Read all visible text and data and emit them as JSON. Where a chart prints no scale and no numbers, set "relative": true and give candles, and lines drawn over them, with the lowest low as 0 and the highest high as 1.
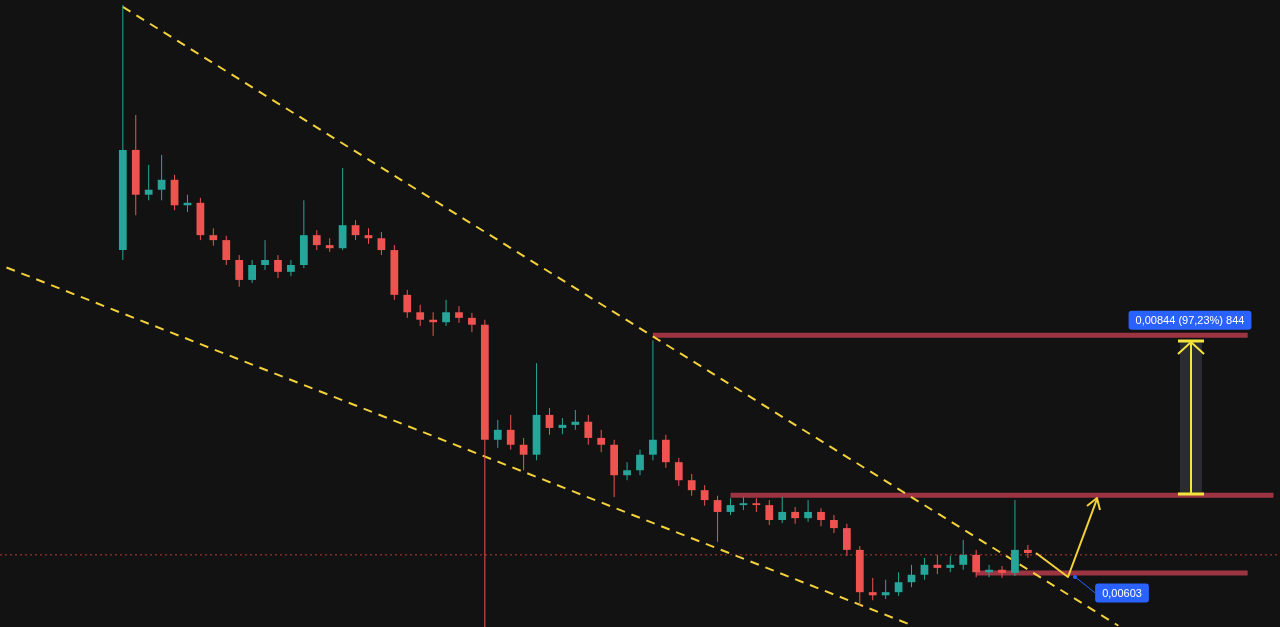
{
  "chart_data": {
    "type": "candlestick",
    "relative": true,
    "categories": [
      null,
      null,
      null,
      null,
      null,
      null,
      null,
      null,
      null,
      null,
      null,
      null,
      null,
      null,
      null,
      null,
      null,
      null,
      null,
      null,
      null,
      null,
      null,
      null,
      null,
      null,
      null,
      null,
      null,
      null,
      null,
      null,
      null,
      null,
      null,
      null,
      null,
      null,
      null,
      null,
      null,
      null,
      null,
      null,
      null,
      null,
      null,
      null,
      null,
      null,
      null,
      null,
      null,
      null,
      null,
      null,
      null,
      null,
      null,
      null,
      null,
      null,
      null,
      null,
      null,
      null,
      null,
      null,
      null,
      null,
      null,
      null,
      null,
      null,
      null,
      null,
      null,
      null,
      null,
      null,
      null,
      null,
      null,
      null,
      null,
      null,
      null,
      null,
      null,
      null,
      null,
      null,
      null,
      null,
      null,
      null,
      null,
      null,
      null
    ],
    "ohlc": [
      null,
      null,
      null,
      null,
      null,
      null,
      null,
      null,
      null,
      [
        0.606,
        1.0,
        0.59,
        0.767
      ],
      [
        0.767,
        0.823,
        0.662,
        0.695
      ],
      [
        0.695,
        0.743,
        0.686,
        0.703
      ],
      [
        0.703,
        0.759,
        0.686,
        0.719
      ],
      [
        0.719,
        0.727,
        0.67,
        0.678
      ],
      [
        0.678,
        0.695,
        0.667,
        0.682
      ],
      [
        0.682,
        0.69,
        0.622,
        0.63
      ],
      [
        0.63,
        0.641,
        0.613,
        0.622
      ],
      [
        0.622,
        0.629,
        0.582,
        0.59
      ],
      [
        0.59,
        0.598,
        0.547,
        0.558
      ],
      [
        0.558,
        0.59,
        0.553,
        0.582
      ],
      [
        0.582,
        0.622,
        0.574,
        0.59
      ],
      [
        0.59,
        0.598,
        0.561,
        0.571
      ],
      [
        0.571,
        0.59,
        0.564,
        0.582
      ],
      [
        0.582,
        0.686,
        0.577,
        0.63
      ],
      [
        0.63,
        0.638,
        0.606,
        0.614
      ],
      [
        0.614,
        0.625,
        0.603,
        0.609
      ],
      [
        0.609,
        0.738,
        0.606,
        0.646
      ],
      [
        0.646,
        0.654,
        0.622,
        0.63
      ],
      [
        0.63,
        0.641,
        0.616,
        0.625
      ],
      [
        0.625,
        0.635,
        0.598,
        0.606
      ],
      [
        0.606,
        0.614,
        0.526,
        0.534
      ],
      [
        0.534,
        0.542,
        0.497,
        0.506
      ],
      [
        0.506,
        0.518,
        0.484,
        0.494
      ],
      [
        0.494,
        0.506,
        0.468,
        0.49
      ],
      [
        0.49,
        0.526,
        0.484,
        0.506
      ],
      [
        0.506,
        0.516,
        0.489,
        0.497
      ],
      [
        0.497,
        0.505,
        0.474,
        0.486
      ],
      [
        0.486,
        0.494,
        0.0,
        0.301
      ],
      [
        0.301,
        0.333,
        0.288,
        0.317
      ],
      [
        0.317,
        0.341,
        0.285,
        0.293
      ],
      [
        0.293,
        0.304,
        0.252,
        0.277
      ],
      [
        0.277,
        0.424,
        0.268,
        0.341
      ],
      [
        0.341,
        0.352,
        0.309,
        0.32
      ],
      [
        0.32,
        0.336,
        0.31,
        0.325
      ],
      [
        0.325,
        0.349,
        0.317,
        0.33
      ],
      [
        0.33,
        0.341,
        0.293,
        0.304
      ],
      [
        0.304,
        0.317,
        0.281,
        0.293
      ],
      [
        0.293,
        0.301,
        0.209,
        0.244
      ],
      [
        0.244,
        0.265,
        0.236,
        0.252
      ],
      [
        0.252,
        0.285,
        0.244,
        0.277
      ],
      [
        0.277,
        0.461,
        0.268,
        0.301
      ],
      [
        0.301,
        0.309,
        0.256,
        0.265
      ],
      [
        0.265,
        0.272,
        0.227,
        0.236
      ],
      [
        0.236,
        0.246,
        0.211,
        0.22
      ],
      [
        0.22,
        0.228,
        0.195,
        0.204
      ],
      [
        0.204,
        0.211,
        0.137,
        0.185
      ],
      [
        0.185,
        0.207,
        0.18,
        0.196
      ],
      [
        0.196,
        0.209,
        0.188,
        0.199
      ],
      [
        0.199,
        0.207,
        0.185,
        0.196
      ],
      [
        0.196,
        0.204,
        0.164,
        0.172
      ],
      [
        0.172,
        0.209,
        0.167,
        0.185
      ],
      [
        0.185,
        0.193,
        0.166,
        0.175
      ],
      [
        0.175,
        0.204,
        0.169,
        0.185
      ],
      [
        0.185,
        0.191,
        0.162,
        0.172
      ],
      [
        0.172,
        0.18,
        0.151,
        0.159
      ],
      [
        0.159,
        0.166,
        0.114,
        0.124
      ],
      [
        0.124,
        0.13,
        0.035,
        0.056
      ],
      [
        0.056,
        0.079,
        0.043,
        0.051
      ],
      [
        0.051,
        0.076,
        0.045,
        0.056
      ],
      [
        0.056,
        0.088,
        0.05,
        0.072
      ],
      [
        0.072,
        0.1,
        0.064,
        0.084
      ],
      [
        0.084,
        0.111,
        0.076,
        0.1
      ],
      [
        0.1,
        0.116,
        0.085,
        0.095
      ],
      [
        0.095,
        0.114,
        0.088,
        0.1
      ],
      [
        0.1,
        0.14,
        0.092,
        0.116
      ],
      [
        0.116,
        0.124,
        0.08,
        0.088
      ],
      [
        0.088,
        0.1,
        0.08,
        0.092
      ],
      [
        0.092,
        0.098,
        0.079,
        0.087
      ],
      [
        0.087,
        0.204,
        0.082,
        0.124
      ],
      [
        0.124,
        0.132,
        0.111,
        0.119
      ],
      null,
      null,
      null,
      null,
      null,
      null,
      null,
      null,
      null,
      null,
      null,
      null,
      null,
      null,
      null,
      null,
      null,
      null,
      null
    ],
    "colors": [
      null,
      null,
      null,
      null,
      null,
      null,
      null,
      null,
      null,
      "#26a69a",
      "#ef5350",
      "#26a69a",
      "#26a69a",
      "#ef5350",
      "#26a69a",
      "#ef5350",
      "#ef5350",
      "#ef5350",
      "#ef5350",
      "#26a69a",
      "#26a69a",
      "#ef5350",
      "#26a69a",
      "#26a69a",
      "#ef5350",
      "#ef5350",
      "#26a69a",
      "#ef5350",
      "#ef5350",
      "#ef5350",
      "#ef5350",
      "#ef5350",
      "#ef5350",
      "#ef5350",
      "#26a69a",
      "#ef5350",
      "#ef5350",
      "#ef5350",
      "#26a69a",
      "#ef5350",
      "#ef5350",
      "#26a69a",
      "#ef5350",
      "#26a69a",
      "#26a69a",
      "#ef5350",
      "#ef5350",
      "#ef5350",
      "#26a69a",
      "#26a69a",
      "#26a69a",
      "#ef5350",
      "#ef5350",
      "#ef5350",
      "#ef5350",
      "#ef5350",
      "#26a69a",
      "#26a69a",
      "#ef5350",
      "#ef5350",
      "#26a69a",
      "#ef5350",
      "#26a69a",
      "#ef5350",
      "#ef5350",
      "#ef5350",
      "#ef5350",
      "#ef5350",
      "#26a69a",
      "#26a69a",
      "#26a69a",
      "#26a69a",
      "#ef5350",
      "#26a69a",
      "#26a69a",
      "#ef5350",
      "#26a69a",
      "#ef5350",
      "#26a69a",
      "#ef5350",
      null,
      null,
      null,
      null,
      null,
      null,
      null,
      null,
      null,
      null,
      null,
      null,
      null,
      null,
      null,
      null,
      null,
      null,
      null
    ],
    "series": [
      {
        "type": "line",
        "color": "#f2d13a",
        "line_style": "dashed",
        "values": [
          null,
          null,
          null,
          null,
          null,
          null,
          null,
          null,
          null,
          0.997,
          null,
          null,
          null,
          null,
          null,
          null,
          null,
          null,
          null,
          null,
          null,
          null,
          null,
          null,
          null,
          null,
          null,
          null,
          null,
          null,
          null,
          null,
          null,
          null,
          null,
          null,
          null,
          null,
          null,
          null,
          null,
          null,
          null,
          null,
          null,
          null,
          null,
          null,
          null,
          null,
          null,
          null,
          null,
          null,
          null,
          null,
          null,
          null,
          null,
          null,
          null,
          null,
          null,
          null,
          null,
          null,
          null,
          null,
          null,
          null,
          null,
          null,
          null,
          null,
          null,
          null,
          null,
          null,
          null,
          null,
          null,
          null,
          null,
          null,
          null,
          null,
          0.002,
          null,
          null,
          null,
          null,
          null,
          null,
          null,
          null,
          null,
          null,
          null,
          null
        ]
      },
      {
        "type": "line",
        "color": "#f2d13a",
        "line_style": "dashed",
        "values": [
          0.578,
          null,
          null,
          null,
          null,
          null,
          null,
          null,
          null,
          null,
          null,
          null,
          null,
          null,
          null,
          null,
          null,
          null,
          null,
          null,
          null,
          null,
          null,
          null,
          null,
          null,
          null,
          null,
          null,
          null,
          null,
          null,
          null,
          null,
          null,
          null,
          null,
          null,
          null,
          null,
          null,
          null,
          null,
          null,
          null,
          null,
          null,
          null,
          null,
          null,
          null,
          null,
          null,
          null,
          null,
          null,
          null,
          null,
          null,
          null,
          null,
          null,
          null,
          null,
          null,
          null,
          null,
          null,
          null,
          null,
          0.003,
          null,
          null,
          null,
          null,
          null,
          null,
          null,
          null,
          null,
          null,
          null,
          null,
          null,
          null,
          null,
          null,
          null,
          null,
          null,
          null,
          null,
          null,
          null,
          null,
          null,
          null,
          null,
          null
        ]
      },
      {
        "type": "line",
        "color": "#9c3442",
        "line_style": "solid",
        "values": [
          null,
          null,
          null,
          null,
          null,
          null,
          null,
          null,
          null,
          null,
          null,
          null,
          null,
          null,
          null,
          null,
          null,
          null,
          null,
          null,
          null,
          null,
          null,
          null,
          null,
          null,
          null,
          null,
          null,
          null,
          null,
          null,
          null,
          null,
          null,
          null,
          null,
          null,
          null,
          null,
          null,
          null,
          null,
          null,
          null,
          null,
          null,
          null,
          null,
          null,
          0.469,
          null,
          null,
          null,
          null,
          null,
          null,
          null,
          null,
          null,
          null,
          null,
          null,
          null,
          null,
          null,
          null,
          null,
          null,
          null,
          null,
          null,
          null,
          null,
          null,
          null,
          null,
          null,
          null,
          null,
          null,
          null,
          null,
          null,
          null,
          null,
          null,
          null,
          null,
          null,
          null,
          null,
          null,
          null,
          null,
          null,
          0.469,
          null,
          null
        ]
      },
      {
        "type": "line",
        "color": "#9c3442",
        "line_style": "solid",
        "values": [
          null,
          null,
          null,
          null,
          null,
          null,
          null,
          null,
          null,
          null,
          null,
          null,
          null,
          null,
          null,
          null,
          null,
          null,
          null,
          null,
          null,
          null,
          null,
          null,
          null,
          null,
          null,
          null,
          null,
          null,
          null,
          null,
          null,
          null,
          null,
          null,
          null,
          null,
          null,
          null,
          null,
          null,
          null,
          null,
          null,
          null,
          null,
          null,
          null,
          null,
          null,
          null,
          null,
          null,
          null,
          null,
          0.212,
          null,
          null,
          null,
          null,
          null,
          null,
          null,
          null,
          null,
          null,
          null,
          null,
          null,
          null,
          null,
          null,
          null,
          null,
          null,
          null,
          null,
          null,
          null,
          null,
          null,
          null,
          null,
          null,
          null,
          null,
          null,
          null,
          null,
          null,
          null,
          null,
          null,
          null,
          null,
          null,
          null,
          0.212
        ]
      },
      {
        "type": "line",
        "color": "#9c3442",
        "line_style": "solid",
        "values": [
          null,
          null,
          null,
          null,
          null,
          null,
          null,
          null,
          null,
          null,
          null,
          null,
          null,
          null,
          null,
          null,
          null,
          null,
          null,
          null,
          null,
          null,
          null,
          null,
          null,
          null,
          null,
          null,
          null,
          null,
          null,
          null,
          null,
          null,
          null,
          null,
          null,
          null,
          null,
          null,
          null,
          null,
          null,
          null,
          null,
          null,
          null,
          null,
          null,
          null,
          null,
          null,
          null,
          null,
          null,
          null,
          null,
          null,
          null,
          null,
          null,
          null,
          null,
          null,
          null,
          null,
          null,
          null,
          null,
          null,
          null,
          null,
          null,
          null,
          null,
          0.087,
          null,
          null,
          null,
          null,
          null,
          null,
          null,
          null,
          null,
          null,
          null,
          null,
          null,
          null,
          null,
          null,
          null,
          null,
          null,
          null,
          0.087,
          null,
          null
        ]
      }
    ],
    "ref_lines": [
      {
        "axis": "y",
        "value": 0.116,
        "color": "#b33a3a",
        "line_style": "dotted"
      }
    ],
    "annotations": [
      {
        "text": "0,00844 (97,23%) 844",
        "y": 0.469
      },
      {
        "text": "0,00603",
        "y": 0.087
      }
    ]
  }
}
